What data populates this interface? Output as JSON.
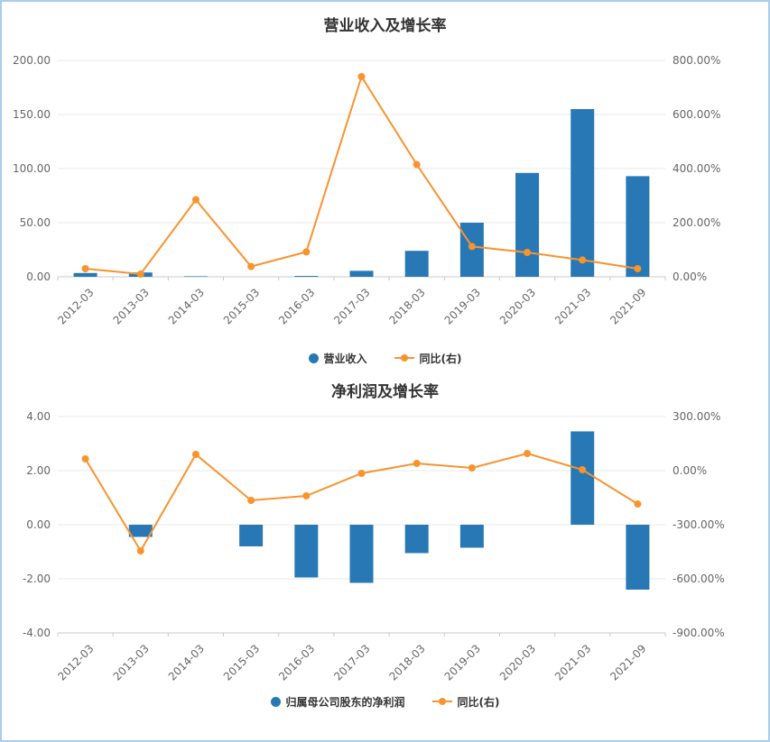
{
  "page": {
    "background": "#ffffff",
    "border_color": "#a9cdea"
  },
  "chart_data": [
    {
      "type": "bar+line",
      "title": "营业收入及增长率",
      "categories": [
        "2012-03",
        "2013-03",
        "2014-03",
        "2015-03",
        "2016-03",
        "2017-03",
        "2018-03",
        "2019-03",
        "2020-03",
        "2021-03",
        "2021-09"
      ],
      "series": [
        {
          "name": "营业收入",
          "type": "bar",
          "axis": "left",
          "color": "#2878b5",
          "values": [
            3.5,
            4,
            0.5,
            0.3,
            0.8,
            5.5,
            24,
            50,
            96,
            155,
            93
          ]
        },
        {
          "name": "同比(右)",
          "type": "line",
          "axis": "right",
          "color": "#f8932e",
          "values": [
            30,
            10,
            285,
            38,
            92,
            740,
            415,
            112,
            90,
            62,
            30
          ]
        }
      ],
      "left_axis": {
        "min": 0,
        "max": 200,
        "ticks": [
          "200.00",
          "150.00",
          "100.00",
          "50.00",
          "0.00"
        ]
      },
      "right_axis": {
        "min": 0,
        "max": 800,
        "ticks": [
          "800.00%",
          "600.00%",
          "400.00%",
          "200.00%",
          "0.00%"
        ]
      },
      "legend_position": "bottom",
      "grid": true
    },
    {
      "type": "bar+line",
      "title": "净利润及增长率",
      "categories": [
        "2012-03",
        "2013-03",
        "2014-03",
        "2015-03",
        "2016-03",
        "2017-03",
        "2018-03",
        "2019-03",
        "2020-03",
        "2021-03",
        "2021-09"
      ],
      "series": [
        {
          "name": "归属母公司股东的净利润",
          "type": "bar",
          "axis": "left",
          "color": "#2878b5",
          "values": [
            0,
            -0.45,
            0,
            -0.8,
            -1.95,
            -2.15,
            -1.05,
            -0.85,
            0,
            3.45,
            -2.4
          ]
        },
        {
          "name": "同比(右)",
          "type": "line",
          "axis": "right",
          "color": "#f8932e",
          "values": [
            65,
            -445,
            90,
            -165,
            -140,
            -15,
            40,
            15,
            95,
            5,
            -185
          ]
        }
      ],
      "left_axis": {
        "min": -4,
        "max": 4,
        "ticks": [
          "4.00",
          "2.00",
          "0.00",
          "-2.00",
          "-4.00"
        ]
      },
      "right_axis": {
        "min": -900,
        "max": 300,
        "ticks": [
          "300.00%",
          "0.00%",
          "-300.00%",
          "-600.00%",
          "-900.00%"
        ]
      },
      "legend_position": "bottom",
      "grid": true
    }
  ]
}
